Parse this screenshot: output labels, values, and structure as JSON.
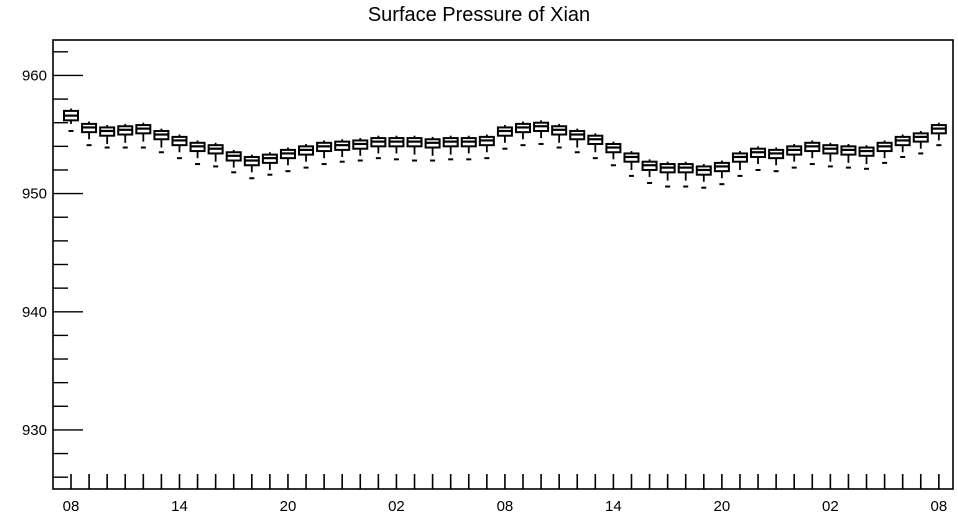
{
  "chart_data": {
    "type": "box",
    "title": "Surface Pressure of Xian",
    "xlabel": "",
    "ylabel": "",
    "ylim": [
      925,
      963
    ],
    "y_ticks": [
      930,
      940,
      950,
      960
    ],
    "x_tick_labels": [
      "08",
      "14",
      "20",
      "02",
      "08",
      "14",
      "20",
      "02",
      "08"
    ],
    "grid": false,
    "series": [
      {
        "boxes": [
          {
            "x": 0,
            "median": 956.6,
            "q1": 956.2,
            "q3": 957.0,
            "min": 955.9,
            "max": 957.2,
            "outliers": [
              955.3
            ]
          },
          {
            "x": 1,
            "median": 955.6,
            "q1": 955.2,
            "q3": 955.9,
            "min": 954.6,
            "max": 956.1,
            "outliers": [
              954.1
            ]
          },
          {
            "x": 2,
            "median": 955.3,
            "q1": 954.9,
            "q3": 955.6,
            "min": 954.2,
            "max": 955.8,
            "outliers": [
              953.9
            ]
          },
          {
            "x": 3,
            "median": 955.4,
            "q1": 955.0,
            "q3": 955.7,
            "min": 954.3,
            "max": 955.9,
            "outliers": [
              953.9
            ]
          },
          {
            "x": 4,
            "median": 955.5,
            "q1": 955.1,
            "q3": 955.8,
            "min": 954.4,
            "max": 956.0,
            "outliers": [
              953.9
            ]
          },
          {
            "x": 5,
            "median": 955.0,
            "q1": 954.6,
            "q3": 955.3,
            "min": 953.9,
            "max": 955.5,
            "outliers": [
              953.5
            ]
          },
          {
            "x": 6,
            "median": 954.5,
            "q1": 954.1,
            "q3": 954.8,
            "min": 953.5,
            "max": 955.0,
            "outliers": [
              953.0
            ]
          },
          {
            "x": 7,
            "median": 954.0,
            "q1": 953.6,
            "q3": 954.3,
            "min": 953.0,
            "max": 954.5,
            "outliers": [
              952.5
            ]
          },
          {
            "x": 8,
            "median": 953.8,
            "q1": 953.4,
            "q3": 954.1,
            "min": 952.7,
            "max": 954.3,
            "outliers": [
              952.3
            ]
          },
          {
            "x": 9,
            "median": 953.2,
            "q1": 952.8,
            "q3": 953.5,
            "min": 952.2,
            "max": 953.7,
            "outliers": [
              951.8
            ]
          },
          {
            "x": 10,
            "median": 952.8,
            "q1": 952.4,
            "q3": 953.1,
            "min": 951.8,
            "max": 953.3,
            "outliers": [
              951.3
            ]
          },
          {
            "x": 11,
            "median": 953.0,
            "q1": 952.6,
            "q3": 953.3,
            "min": 952.0,
            "max": 953.5,
            "outliers": [
              951.6
            ]
          },
          {
            "x": 12,
            "median": 953.4,
            "q1": 953.0,
            "q3": 953.7,
            "min": 952.4,
            "max": 953.9,
            "outliers": [
              951.9
            ]
          },
          {
            "x": 13,
            "median": 953.7,
            "q1": 953.3,
            "q3": 954.0,
            "min": 952.7,
            "max": 954.2,
            "outliers": [
              952.2
            ]
          },
          {
            "x": 14,
            "median": 954.0,
            "q1": 953.6,
            "q3": 954.3,
            "min": 953.0,
            "max": 954.5,
            "outliers": [
              952.5
            ]
          },
          {
            "x": 15,
            "median": 954.1,
            "q1": 953.7,
            "q3": 954.4,
            "min": 953.1,
            "max": 954.6,
            "outliers": [
              952.7
            ]
          },
          {
            "x": 16,
            "median": 954.2,
            "q1": 953.8,
            "q3": 954.5,
            "min": 953.2,
            "max": 954.7,
            "outliers": [
              952.8
            ]
          },
          {
            "x": 17,
            "median": 954.4,
            "q1": 954.0,
            "q3": 954.7,
            "min": 953.4,
            "max": 954.9,
            "outliers": [
              953.0
            ]
          },
          {
            "x": 18,
            "median": 954.4,
            "q1": 954.0,
            "q3": 954.7,
            "min": 953.4,
            "max": 954.9,
            "outliers": [
              952.9
            ]
          },
          {
            "x": 19,
            "median": 954.4,
            "q1": 954.0,
            "q3": 954.7,
            "min": 953.3,
            "max": 954.9,
            "outliers": [
              952.8
            ]
          },
          {
            "x": 20,
            "median": 954.3,
            "q1": 953.9,
            "q3": 954.6,
            "min": 953.2,
            "max": 954.8,
            "outliers": [
              952.8
            ]
          },
          {
            "x": 21,
            "median": 954.4,
            "q1": 954.0,
            "q3": 954.7,
            "min": 953.3,
            "max": 954.9,
            "outliers": [
              952.9
            ]
          },
          {
            "x": 22,
            "median": 954.4,
            "q1": 954.0,
            "q3": 954.7,
            "min": 953.4,
            "max": 954.9,
            "outliers": [
              952.9
            ]
          },
          {
            "x": 23,
            "median": 954.5,
            "q1": 954.1,
            "q3": 954.8,
            "min": 953.5,
            "max": 955.0,
            "outliers": [
              953.0
            ]
          },
          {
            "x": 24,
            "median": 955.3,
            "q1": 954.9,
            "q3": 955.6,
            "min": 954.3,
            "max": 955.8,
            "outliers": [
              953.8
            ]
          },
          {
            "x": 25,
            "median": 955.6,
            "q1": 955.2,
            "q3": 955.9,
            "min": 954.6,
            "max": 956.1,
            "outliers": [
              954.1
            ]
          },
          {
            "x": 26,
            "median": 955.7,
            "q1": 955.3,
            "q3": 956.0,
            "min": 954.7,
            "max": 956.2,
            "outliers": [
              954.2
            ]
          },
          {
            "x": 27,
            "median": 955.4,
            "q1": 955.0,
            "q3": 955.7,
            "min": 954.3,
            "max": 955.9,
            "outliers": [
              953.9
            ]
          },
          {
            "x": 28,
            "median": 955.0,
            "q1": 954.6,
            "q3": 955.3,
            "min": 953.9,
            "max": 955.5,
            "outliers": [
              953.5
            ]
          },
          {
            "x": 29,
            "median": 954.6,
            "q1": 954.2,
            "q3": 954.9,
            "min": 953.5,
            "max": 955.1,
            "outliers": [
              953.0
            ]
          },
          {
            "x": 30,
            "median": 953.9,
            "q1": 953.5,
            "q3": 954.2,
            "min": 952.9,
            "max": 954.4,
            "outliers": [
              952.4
            ]
          },
          {
            "x": 31,
            "median": 953.1,
            "q1": 952.7,
            "q3": 953.4,
            "min": 952.0,
            "max": 953.6,
            "outliers": [
              951.5
            ]
          },
          {
            "x": 32,
            "median": 952.4,
            "q1": 952.0,
            "q3": 952.7,
            "min": 951.4,
            "max": 952.9,
            "outliers": [
              950.9
            ]
          },
          {
            "x": 33,
            "median": 952.2,
            "q1": 951.8,
            "q3": 952.5,
            "min": 951.1,
            "max": 952.7,
            "outliers": [
              950.6
            ]
          },
          {
            "x": 34,
            "median": 952.2,
            "q1": 951.8,
            "q3": 952.5,
            "min": 951.1,
            "max": 952.7,
            "outliers": [
              950.6
            ]
          },
          {
            "x": 35,
            "median": 952.0,
            "q1": 951.6,
            "q3": 952.3,
            "min": 951.0,
            "max": 952.5,
            "outliers": [
              950.5
            ]
          },
          {
            "x": 36,
            "median": 952.3,
            "q1": 951.9,
            "q3": 952.6,
            "min": 951.3,
            "max": 952.8,
            "outliers": [
              950.8
            ]
          },
          {
            "x": 37,
            "median": 953.1,
            "q1": 952.7,
            "q3": 953.4,
            "min": 952.0,
            "max": 953.6,
            "outliers": [
              951.5
            ]
          },
          {
            "x": 38,
            "median": 953.5,
            "q1": 953.1,
            "q3": 953.8,
            "min": 952.5,
            "max": 954.0,
            "outliers": [
              952.0
            ]
          },
          {
            "x": 39,
            "median": 953.4,
            "q1": 953.0,
            "q3": 953.7,
            "min": 952.4,
            "max": 953.9,
            "outliers": [
              951.9
            ]
          },
          {
            "x": 40,
            "median": 953.7,
            "q1": 953.3,
            "q3": 954.0,
            "min": 952.7,
            "max": 954.2,
            "outliers": [
              952.2
            ]
          },
          {
            "x": 41,
            "median": 954.0,
            "q1": 953.6,
            "q3": 954.3,
            "min": 953.0,
            "max": 954.5,
            "outliers": [
              952.5
            ]
          },
          {
            "x": 42,
            "median": 953.8,
            "q1": 953.4,
            "q3": 954.1,
            "min": 952.7,
            "max": 954.3,
            "outliers": [
              952.3
            ]
          },
          {
            "x": 43,
            "median": 953.7,
            "q1": 953.3,
            "q3": 954.0,
            "min": 952.6,
            "max": 954.2,
            "outliers": [
              952.2
            ]
          },
          {
            "x": 44,
            "median": 953.6,
            "q1": 953.2,
            "q3": 953.9,
            "min": 952.5,
            "max": 954.1,
            "outliers": [
              952.1
            ]
          },
          {
            "x": 45,
            "median": 954.0,
            "q1": 953.6,
            "q3": 954.3,
            "min": 953.0,
            "max": 954.5,
            "outliers": [
              952.6
            ]
          },
          {
            "x": 46,
            "median": 954.5,
            "q1": 954.1,
            "q3": 954.8,
            "min": 953.5,
            "max": 955.0,
            "outliers": [
              953.1
            ]
          },
          {
            "x": 47,
            "median": 954.8,
            "q1": 954.4,
            "q3": 955.1,
            "min": 953.8,
            "max": 955.3,
            "outliers": [
              953.4
            ]
          },
          {
            "x": 48,
            "median": 955.5,
            "q1": 955.1,
            "q3": 955.8,
            "min": 954.5,
            "max": 956.0,
            "outliers": [
              954.1
            ]
          }
        ]
      }
    ]
  }
}
